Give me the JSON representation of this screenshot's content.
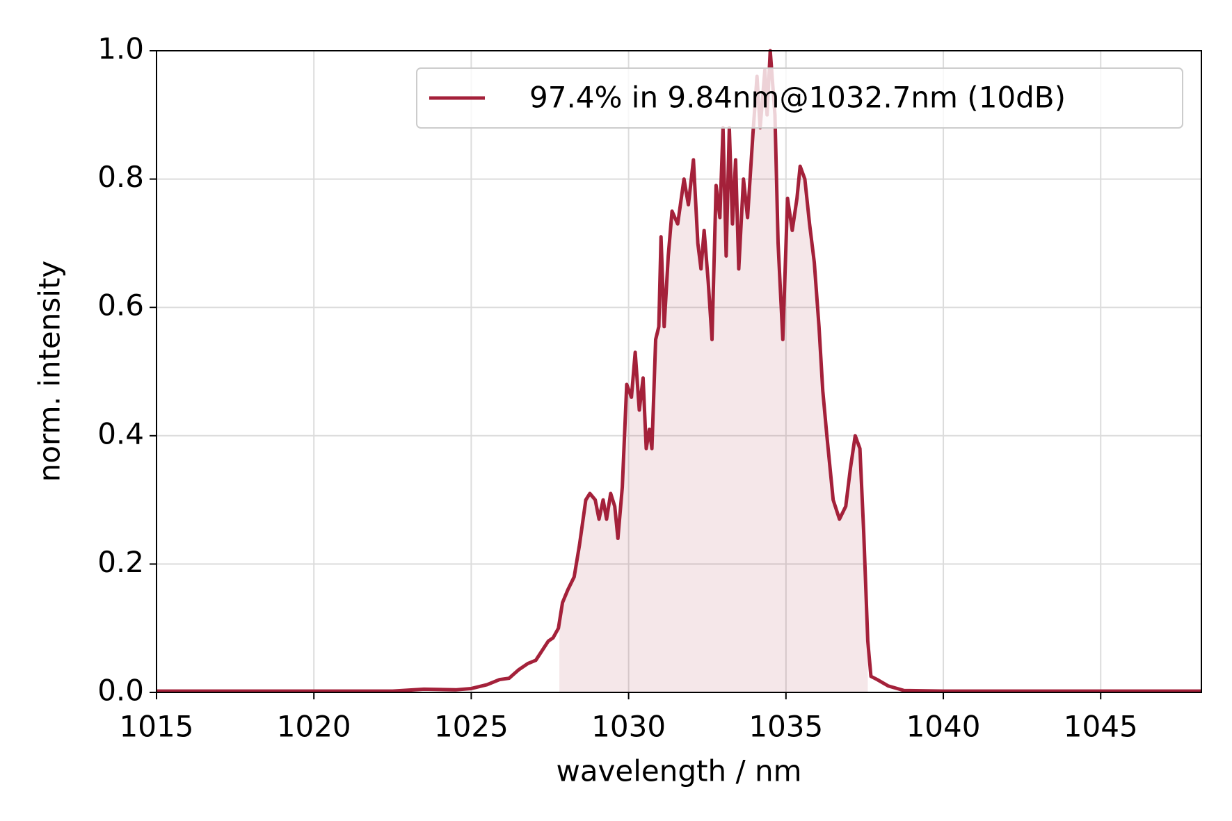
{
  "chart_data": {
    "type": "line",
    "xlabel": "wavelength / nm",
    "ylabel": "norm. intensity",
    "x": [
      1015,
      1020,
      1022.5,
      1023.5,
      1024.5,
      1025,
      1025.5,
      1025.9,
      1026.2,
      1026.5,
      1026.8,
      1027.05,
      1027.25,
      1027.45,
      1027.6,
      1027.77,
      1027.9,
      1028.07,
      1028.27,
      1028.44,
      1028.64,
      1028.77,
      1028.94,
      1029.06,
      1029.19,
      1029.3,
      1029.43,
      1029.56,
      1029.66,
      1029.8,
      1029.94,
      1030.09,
      1030.21,
      1030.34,
      1030.46,
      1030.56,
      1030.66,
      1030.74,
      1030.86,
      1030.96,
      1031.03,
      1031.13,
      1031.26,
      1031.38,
      1031.56,
      1031.76,
      1031.9,
      1032.06,
      1032.2,
      1032.3,
      1032.4,
      1032.53,
      1032.65,
      1032.78,
      1032.9,
      1033.0,
      1033.1,
      1033.2,
      1033.3,
      1033.4,
      1033.5,
      1033.65,
      1033.78,
      1033.95,
      1034.08,
      1034.18,
      1034.33,
      1034.4,
      1034.5,
      1034.65,
      1034.75,
      1034.9,
      1035.05,
      1035.2,
      1035.35,
      1035.45,
      1035.6,
      1035.75,
      1035.9,
      1036.05,
      1036.17,
      1036.3,
      1036.5,
      1036.7,
      1036.9,
      1037.05,
      1037.2,
      1037.35,
      1037.47,
      1037.6,
      1037.7,
      1037.9,
      1038.25,
      1038.75,
      1040,
      1048.2
    ],
    "series": [
      {
        "name": "97.4% in 9.84nm@1032.7nm (10dB)",
        "color": "#a4213a",
        "values": [
          0.002,
          0.002,
          0.002,
          0.005,
          0.004,
          0.006,
          0.012,
          0.02,
          0.022,
          0.035,
          0.045,
          0.05,
          0.065,
          0.08,
          0.085,
          0.1,
          0.14,
          0.16,
          0.18,
          0.23,
          0.3,
          0.31,
          0.3,
          0.27,
          0.3,
          0.27,
          0.31,
          0.29,
          0.24,
          0.32,
          0.48,
          0.46,
          0.53,
          0.44,
          0.49,
          0.38,
          0.41,
          0.38,
          0.55,
          0.57,
          0.71,
          0.57,
          0.68,
          0.75,
          0.73,
          0.8,
          0.76,
          0.83,
          0.7,
          0.66,
          0.72,
          0.64,
          0.55,
          0.79,
          0.74,
          0.88,
          0.68,
          0.88,
          0.73,
          0.83,
          0.66,
          0.8,
          0.74,
          0.87,
          0.96,
          0.88,
          0.97,
          0.9,
          1.0,
          0.9,
          0.7,
          0.55,
          0.77,
          0.72,
          0.77,
          0.82,
          0.8,
          0.73,
          0.67,
          0.57,
          0.47,
          0.4,
          0.3,
          0.27,
          0.29,
          0.35,
          0.4,
          0.38,
          0.25,
          0.08,
          0.025,
          0.02,
          0.01,
          0.003,
          0.002,
          0.002
        ]
      }
    ],
    "fill_range": [
      1027.8,
      1037.6
    ],
    "xlim": [
      1015,
      1048.2
    ],
    "xticks": [
      1015,
      1020,
      1025,
      1030,
      1035,
      1040,
      1045
    ],
    "ylim": [
      0,
      1
    ],
    "yticks": [
      {
        "value": 0,
        "label": "0.0"
      },
      0.2,
      0.4,
      0.6,
      0.8,
      {
        "value": 1,
        "label": "1.0"
      }
    ],
    "grid": true,
    "legend": "upper right"
  }
}
